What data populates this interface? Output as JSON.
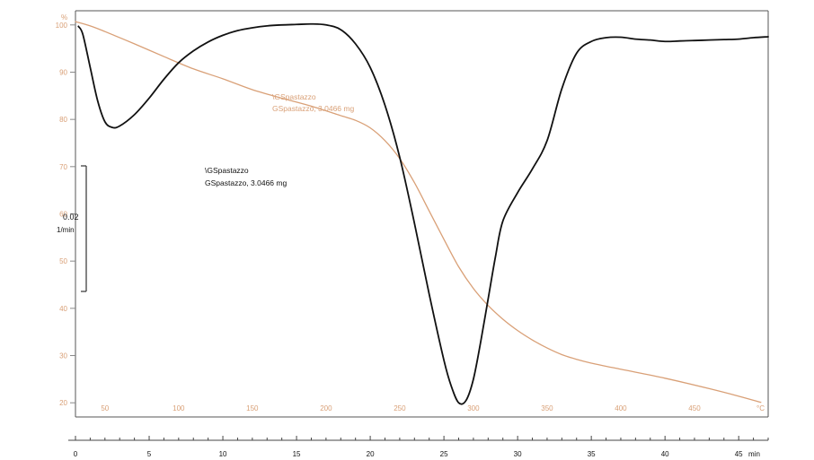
{
  "chart_data": {
    "type": "line",
    "title": "",
    "x": {
      "label": "min",
      "range": [
        0,
        47
      ],
      "ticks": [
        0,
        5,
        10,
        15,
        20,
        25,
        30,
        35,
        40,
        45
      ],
      "tick_labels": [
        "0",
        "5",
        "10",
        "15",
        "20",
        "25",
        "30",
        "35",
        "40",
        "45"
      ]
    },
    "temperature_axis": {
      "label": "°C",
      "ticks": [
        50,
        100,
        150,
        200,
        250,
        300,
        350,
        400,
        450
      ],
      "tick_labels": [
        "50",
        "100",
        "150",
        "200",
        "250",
        "300",
        "350",
        "400",
        "450"
      ],
      "minute_positions": [
        2,
        7,
        12,
        17,
        22,
        27,
        32,
        37,
        42
      ]
    },
    "y": {
      "label": "%",
      "range": [
        17,
        103
      ],
      "ticks": [
        20,
        30,
        40,
        50,
        60,
        70,
        80,
        90,
        100
      ],
      "tick_labels": [
        "20",
        "30",
        "40",
        "50",
        "60",
        "70",
        "80",
        "90",
        "100"
      ]
    },
    "dtg_scale_bar": {
      "value_label": "0.02",
      "unit_label": "1/min"
    },
    "grid": false,
    "series": [
      {
        "name": "\\GSpastazzo",
        "sample_label": "GSpastazzo, 3.0466 mg",
        "color": "#d9a077",
        "x": [
          0,
          1,
          2,
          4,
          6,
          8,
          10,
          12,
          14,
          16,
          18,
          19,
          20,
          21,
          22,
          23,
          24,
          25,
          26,
          27,
          28,
          29,
          30,
          31,
          32,
          33,
          34,
          35,
          37,
          40,
          43,
          45,
          46.5
        ],
        "y": [
          100.7,
          99.8,
          98.6,
          96.0,
          93.3,
          90.7,
          88.6,
          86.3,
          84.5,
          82.8,
          80.8,
          79.8,
          78.2,
          75.5,
          71.7,
          66.6,
          60.6,
          54.6,
          48.8,
          44.2,
          40.6,
          37.7,
          35.3,
          33.3,
          31.6,
          30.2,
          29.2,
          28.4,
          27.1,
          25.2,
          23.0,
          21.4,
          20.1
        ]
      },
      {
        "name": "\\GSpastazzo",
        "sample_label": "GSpastazzo, 3.0466 mg",
        "color": "#111111",
        "x": [
          0.2,
          0.5,
          1.0,
          1.5,
          2.0,
          2.5,
          3.0,
          4.0,
          5.0,
          6.0,
          7.0,
          8.0,
          9.0,
          10.0,
          11.0,
          12.0,
          13.0,
          14.0,
          15.0,
          16.0,
          17.0,
          18.0,
          19.0,
          20.0,
          21.0,
          22.0,
          23.0,
          24.0,
          25.0,
          25.5,
          26.0,
          26.5,
          27.0,
          27.5,
          28.0,
          28.5,
          29.0,
          30.0,
          31.0,
          32.0,
          33.0,
          34.0,
          35.0,
          36.0,
          37.0,
          38.0,
          39.0,
          40.0,
          41.0,
          42.0,
          43.0,
          44.0,
          45.0,
          46.0,
          47.0
        ],
        "y": [
          99.7,
          98.0,
          91.0,
          84.0,
          79.5,
          78.3,
          78.6,
          81.0,
          84.5,
          88.5,
          92.0,
          94.5,
          96.4,
          97.8,
          98.8,
          99.4,
          99.8,
          100.0,
          100.1,
          100.2,
          100.0,
          99.0,
          96.0,
          91.0,
          83.0,
          72.0,
          58.0,
          43.0,
          29.0,
          23.5,
          20.0,
          20.5,
          25.0,
          33.0,
          42.0,
          51.0,
          58.5,
          64.5,
          69.5,
          75.5,
          86.5,
          94.0,
          96.5,
          97.3,
          97.4,
          97.0,
          96.8,
          96.5,
          96.6,
          96.7,
          96.8,
          96.9,
          97.0,
          97.3,
          97.5
        ]
      }
    ]
  }
}
